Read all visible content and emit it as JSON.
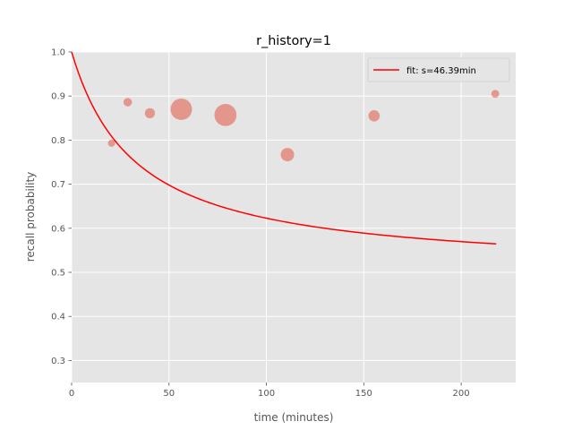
{
  "chart_data": {
    "type": "scatter",
    "title": "r_history=1",
    "xlabel": "time (minutes)",
    "ylabel": "recall probability",
    "xlim": [
      0,
      228
    ],
    "ylim": [
      0.25,
      1.0
    ],
    "x_ticks": [
      0,
      50,
      100,
      150,
      200
    ],
    "y_ticks": [
      0.3,
      0.4,
      0.5,
      0.6,
      0.7,
      0.8,
      0.9,
      1.0
    ],
    "x_tick_labels": [
      "0",
      "50",
      "100",
      "150",
      "200"
    ],
    "y_tick_labels": [
      "0.3",
      "0.4",
      "0.5",
      "0.6",
      "0.7",
      "0.8",
      "0.9",
      "1.0"
    ],
    "grid": true,
    "legend_position": "top-right",
    "points": [
      {
        "x": 20.5,
        "y": 0.793,
        "size": 1
      },
      {
        "x": 28.8,
        "y": 0.886,
        "size": 1.4
      },
      {
        "x": 40.2,
        "y": 0.861,
        "size": 2
      },
      {
        "x": 56.3,
        "y": 0.87,
        "size": 9
      },
      {
        "x": 79.0,
        "y": 0.857,
        "size": 9.5
      },
      {
        "x": 110.8,
        "y": 0.767,
        "size": 3.5
      },
      {
        "x": 155.3,
        "y": 0.855,
        "size": 2.5
      },
      {
        "x": 217.5,
        "y": 0.905,
        "size": 1.2
      }
    ],
    "points_color": "#e24a33",
    "series": [
      {
        "name": "fit: s=46.39min",
        "color": "#ff0000",
        "function": "2^(-t/(t+s))",
        "s": 46.39,
        "x_range": [
          0,
          218
        ]
      }
    ],
    "background_color": "#e5e5e5"
  }
}
